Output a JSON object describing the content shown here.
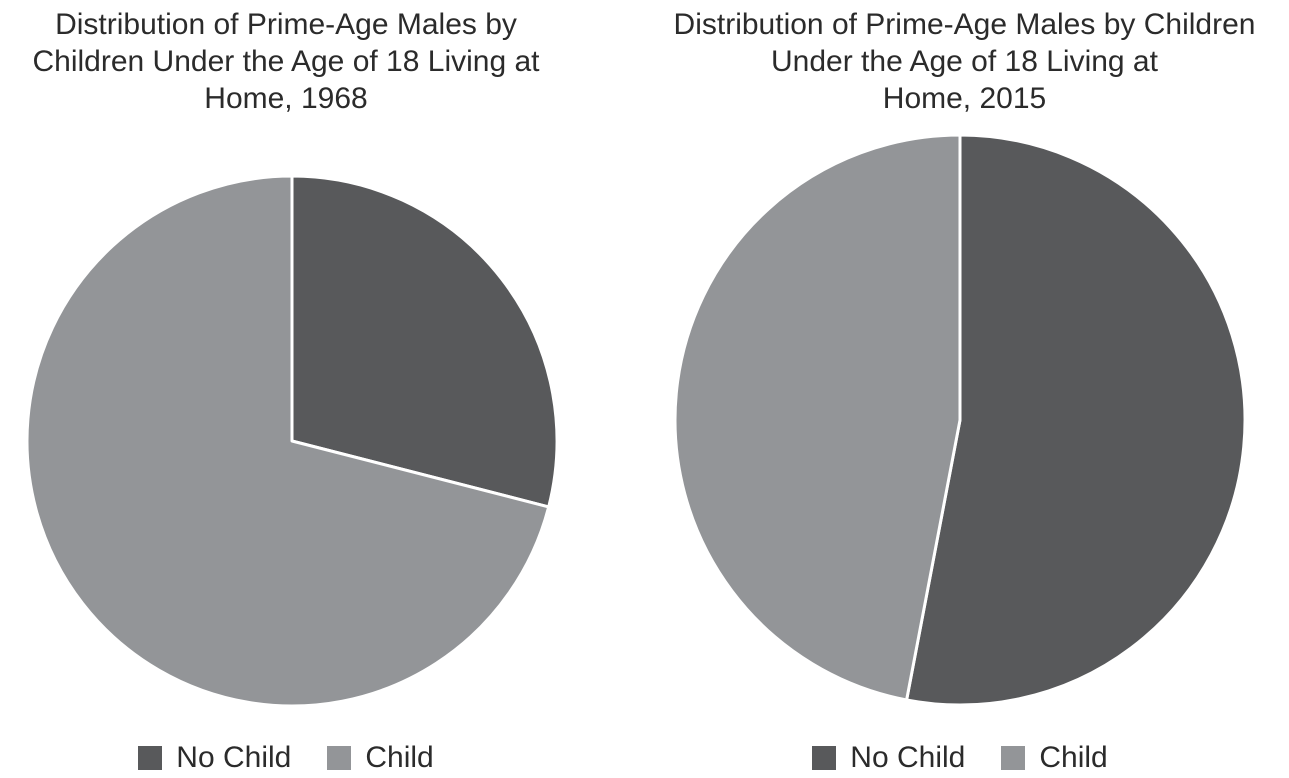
{
  "page": {
    "background_color": "#ffffff",
    "text_color": "#2b2b2b"
  },
  "chart_data": [
    {
      "type": "pie",
      "title": "Distribution of Prime-Age Males by Children Under the Age of 18 Living at Home, 1968",
      "title_lines": [
        "Distribution of Prime-Age Males by",
        "Children Under the Age of 18 Living at",
        "Home, 1968"
      ],
      "labels": [
        "No Child",
        "Child"
      ],
      "values": [
        29,
        71
      ],
      "unit": "percent",
      "colors": [
        "#58595b",
        "#939598"
      ],
      "slice_divider_color": "#ffffff",
      "start_angle_deg": 0,
      "direction": "clockwise",
      "legend_position": "bottom",
      "data_labels_shown": false
    },
    {
      "type": "pie",
      "title": "Distribution of Prime-Age Males by Children Under the Age of 18 Living at Home, 2015",
      "title_lines": [
        "Distribution of Prime-Age Males by Children",
        "Under the Age of 18 Living at",
        "Home, 2015"
      ],
      "labels": [
        "No Child",
        "Child"
      ],
      "values": [
        53,
        47
      ],
      "unit": "percent",
      "colors": [
        "#58595b",
        "#939598"
      ],
      "slice_divider_color": "#ffffff",
      "start_angle_deg": 0,
      "direction": "clockwise",
      "legend_position": "bottom",
      "data_labels_shown": false
    }
  ]
}
